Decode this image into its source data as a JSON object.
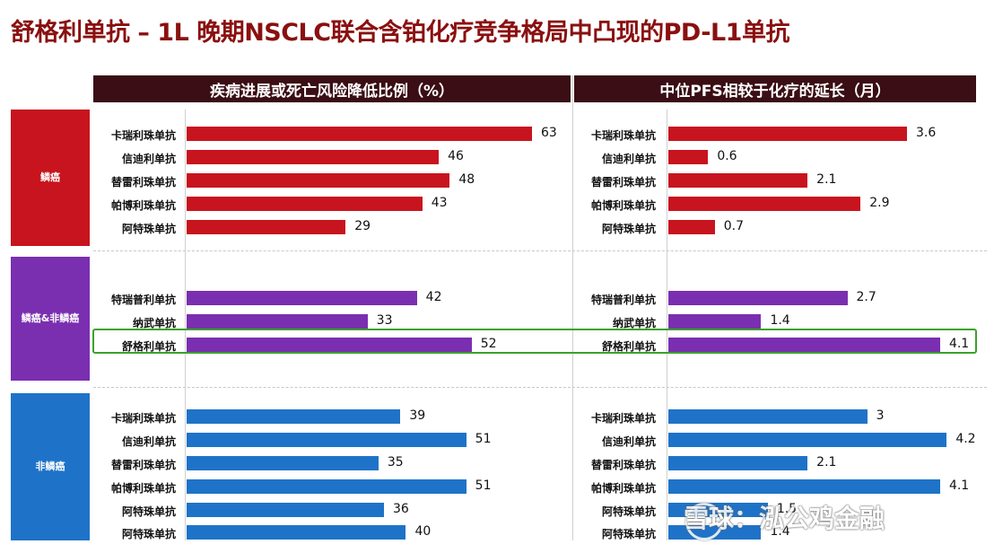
{
  "title": "舒格利单抗 – 1L 晚期NSCLC联合含铂化疗竞争格局中凸现的PD-L1单抗",
  "colors": {
    "squamous": "#c8141e",
    "mixed": "#7a2fb0",
    "nonsquamous": "#1e73c8",
    "header_bg": "#3a0e14",
    "highlight": "#3aa32a"
  },
  "watermark": "雪球：泓公鸡金融",
  "chart_data": [
    {
      "type": "bar",
      "orientation": "horizontal",
      "title": "疾病进展或死亡风险降低比例（%）",
      "groups": [
        {
          "name": "鳞癌",
          "categories": [
            "卡瑞利珠单抗",
            "信迪利单抗",
            "替雷利珠单抗",
            "帕博利珠单抗",
            "阿特珠单抗"
          ],
          "values": [
            63,
            46,
            48,
            43,
            29
          ]
        },
        {
          "name": "鳞癌&非鳞癌",
          "categories": [
            "特瑞普利单抗",
            "纳武单抗",
            "舒格利单抗"
          ],
          "values": [
            42,
            33,
            52
          ]
        },
        {
          "name": "非鳞癌",
          "categories": [
            "卡瑞利珠单抗",
            "信迪利单抗",
            "替雷利珠单抗",
            "帕博利珠单抗",
            "阿特珠单抗",
            "阿特珠单抗"
          ],
          "values": [
            39,
            51,
            35,
            51,
            36,
            40
          ]
        }
      ],
      "xlim": [
        0,
        70
      ],
      "highlight": "舒格利单抗"
    },
    {
      "type": "bar",
      "orientation": "horizontal",
      "title": "中位PFS相较于化疗的延长（月）",
      "groups": [
        {
          "name": "鳞癌",
          "categories": [
            "卡瑞利珠单抗",
            "信迪利单抗",
            "替雷利珠单抗",
            "帕博利珠单抗",
            "阿特珠单抗"
          ],
          "values": [
            3.6,
            0.6,
            2.1,
            2.9,
            0.7
          ]
        },
        {
          "name": "鳞癌&非鳞癌",
          "categories": [
            "特瑞普利单抗",
            "纳武单抗",
            "舒格利单抗"
          ],
          "values": [
            2.7,
            1.4,
            4.1
          ]
        },
        {
          "name": "非鳞癌",
          "categories": [
            "卡瑞利珠单抗",
            "信迪利单抗",
            "替雷利珠单抗",
            "帕博利珠单抗",
            "阿特珠单抗",
            "阿特珠单抗"
          ],
          "values": [
            3,
            4.2,
            2.1,
            4.1,
            1.5,
            1.4
          ]
        }
      ],
      "xlim": [
        0,
        4.4
      ],
      "highlight": "舒格利单抗"
    }
  ]
}
